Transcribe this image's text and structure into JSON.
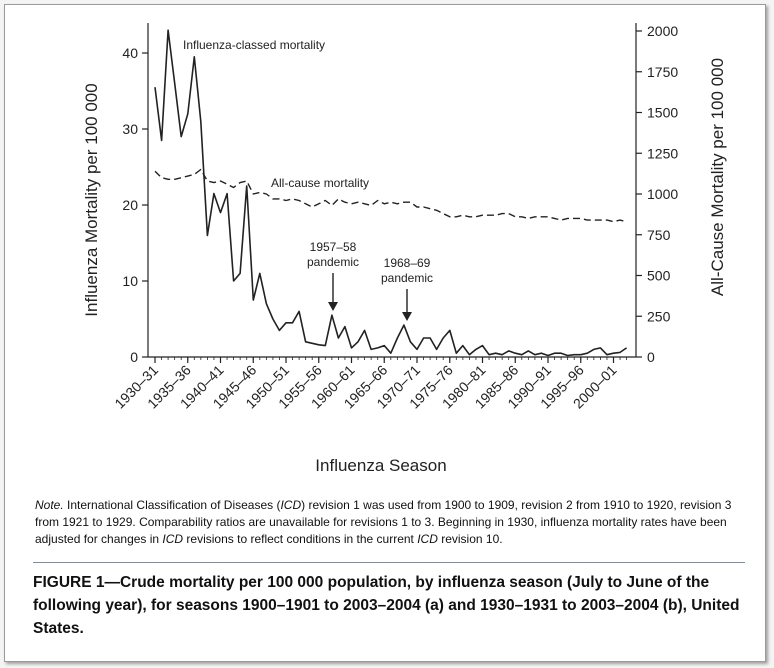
{
  "chart_data": {
    "type": "line",
    "xlabel": "Influenza Season",
    "ylabel_left": "Influenza Mortality per 100 000",
    "ylabel_right": "All-Cause Mortality per 100 000",
    "ylim_left": [
      0,
      45
    ],
    "ylim_right": [
      0,
      2050
    ],
    "yticks_left": [
      0,
      10,
      20,
      30,
      40
    ],
    "yticks_right": [
      0,
      250,
      500,
      750,
      1000,
      1250,
      1500,
      1750,
      2000
    ],
    "xticks": [
      "1930–31",
      "1935–36",
      "1940–41",
      "1945–46",
      "1950–51",
      "1955–56",
      "1960–61",
      "1965–66",
      "1970–71",
      "1975–76",
      "1980–81",
      "1985–86",
      "1990–91",
      "1995–96",
      "2000–01"
    ],
    "grid": false,
    "legend": "none",
    "x_start_year": 1930,
    "series": [
      {
        "name": "Influenza-classed mortality",
        "axis": "left",
        "style": "solid",
        "values": [
          35.5,
          28.5,
          43,
          36,
          29,
          32,
          39.5,
          31,
          16,
          21.5,
          19,
          21.5,
          10,
          11,
          22.5,
          7.5,
          11,
          7,
          5,
          3.5,
          4.5,
          4.5,
          6,
          2,
          1.8,
          1.6,
          1.5,
          5.5,
          2.5,
          4,
          1.2,
          2,
          3.5,
          1,
          1.2,
          1.5,
          0.5,
          2.5,
          4.2,
          2,
          1,
          2.5,
          2.5,
          1,
          2.5,
          3.5,
          0.5,
          1.5,
          0.3,
          1,
          1.5,
          0.3,
          0.5,
          0.3,
          0.8,
          0.5,
          0.3,
          0.8,
          0.3,
          0.5,
          0.2,
          0.5,
          0.5,
          0.2,
          0.3,
          0.3,
          0.5,
          1.0,
          1.2,
          0.3,
          0.5,
          0.6,
          1.2
        ]
      },
      {
        "name": "All-cause mortality",
        "axis": "right",
        "style": "dashed",
        "values": [
          1140,
          1100,
          1090,
          1090,
          1100,
          1110,
          1120,
          1150,
          1080,
          1070,
          1080,
          1060,
          1040,
          1070,
          1080,
          1000,
          1010,
          1000,
          970,
          970,
          960,
          970,
          960,
          940,
          920,
          940,
          960,
          930,
          970,
          950,
          940,
          950,
          940,
          930,
          960,
          940,
          950,
          940,
          950,
          950,
          920,
          920,
          910,
          900,
          880,
          860,
          860,
          870,
          860,
          860,
          870,
          870,
          870,
          880,
          880,
          860,
          860,
          850,
          860,
          860,
          860,
          850,
          840,
          850,
          850,
          850,
          840,
          840,
          840,
          840,
          830,
          840,
          830
        ]
      }
    ],
    "annotations": [
      {
        "text": "Influenza-classed mortality"
      },
      {
        "text": "All-cause mortality"
      },
      {
        "text": [
          "1957–58",
          "pandemic"
        ],
        "year": 1957,
        "arrow": true
      },
      {
        "text": [
          "1968–69",
          "pandemic"
        ],
        "year": 1968,
        "arrow": true
      }
    ]
  },
  "note": {
    "lead": "Note.",
    "seg1": " International Classification of Diseases (",
    "icd1": "ICD",
    "seg2": ") revision 1 was used from 1900 to 1909, revision 2 from 1910 to 1920, revision 3 from 1921 to 1929. Comparability ratios are unavailable for revisions 1 to 3. Beginning in 1930, influenza mortality rates have been adjusted for changes in ",
    "icd2": "ICD",
    "seg3": " revisions to reflect conditions in the current ",
    "icd3": "ICD",
    "seg4": " revision 10."
  },
  "caption": "FIGURE 1—Crude mortality per 100 000 population, by influenza season (July to June of the following year), for seasons 1900–1901 to 2003–2004 (a) and 1930–1931 to 2003–2004 (b), United States."
}
